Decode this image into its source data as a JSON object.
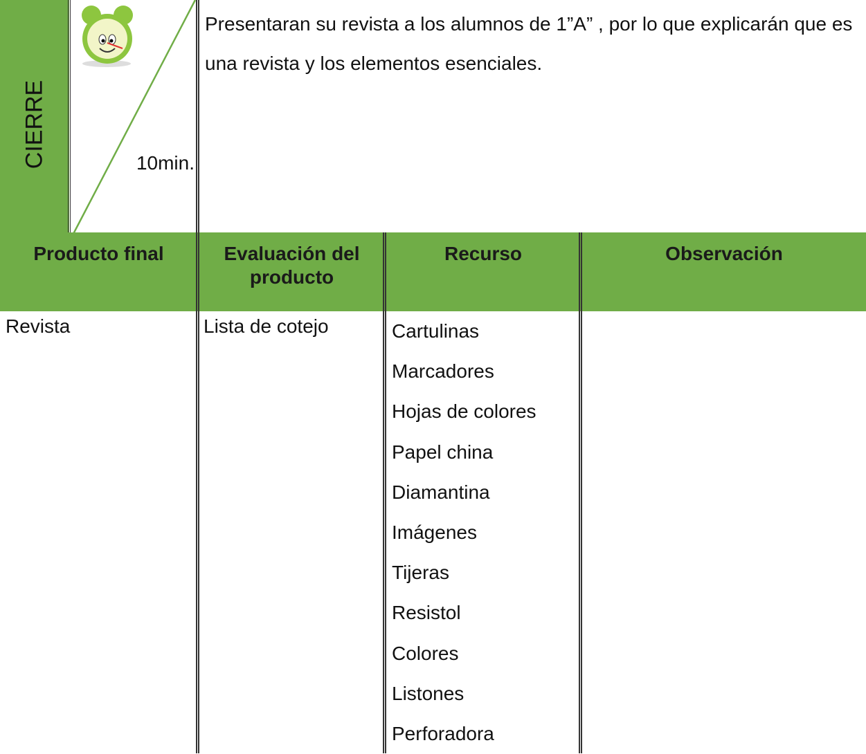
{
  "stage": {
    "label": "CIERRE",
    "time": "10min.",
    "description": "Presentaran su revista a los alumnos de 1”A” , por lo que explicarán que es una revista y los elementos esenciales."
  },
  "table": {
    "headers": [
      "Producto final",
      "Evaluación del producto",
      "Recurso",
      "Observación"
    ],
    "row": {
      "product": "Revista",
      "evaluation": "Lista de cotejo",
      "resources": [
        "Cartulinas",
        "Marcadores",
        "Hojas de colores",
        "Papel china",
        "Diamantina",
        "Imágenes",
        "Tijeras",
        "Resistol",
        "Colores",
        "Listones",
        "Perforadora"
      ]
    }
  }
}
